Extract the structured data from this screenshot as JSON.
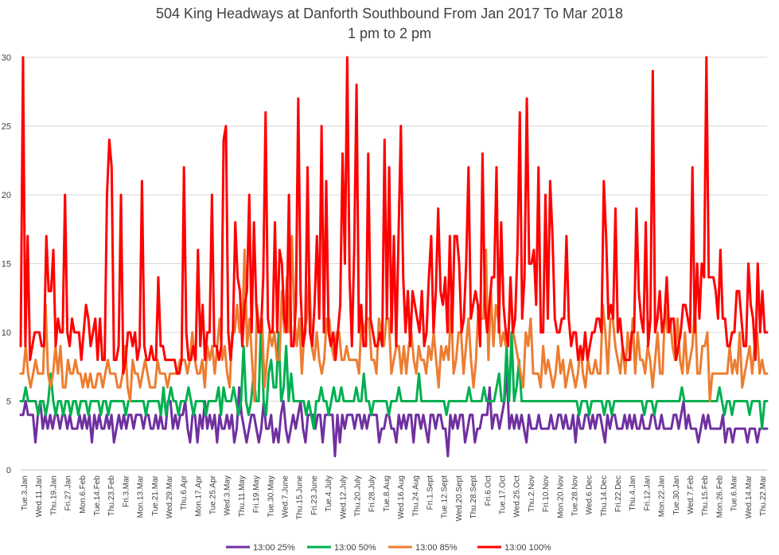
{
  "chart_data": {
    "type": "line",
    "title": "504 King Headways at Danforth Southbound From Jan 2017 To Mar 2018",
    "subtitle": "1 pm to 2 pm",
    "xlabel": "",
    "ylabel": "",
    "ylim": [
      0,
      30
    ],
    "yticks": [
      0,
      5,
      10,
      15,
      20,
      25,
      30
    ],
    "grid": true,
    "legend_position": "bottom",
    "x_tick_labels": [
      "Tue.3.Jan",
      "Wed.11.Jan",
      "Thu.19.Jan",
      "Fri.27.Jan",
      "Mon.6.Feb",
      "Tue.14.Feb",
      "Thu.23.Feb",
      "Fri.3.Mar",
      "Mon.13.Mar",
      "Tue.21.Mar",
      "Wed.29.Mar",
      "Thu.6.Apr",
      "Mon.17.Apr",
      "Tue.25.Apr",
      "Wed.3.May",
      "Thu.11.May",
      "Fri.19.May",
      "Tue.30.May",
      "Wed.7.June",
      "Thu.15.June",
      "Fri.23.June",
      "Tue.4.July",
      "Wed.12.July",
      "Thu.20.July",
      "Fri.28.July",
      "Tue.8.Aug",
      "Wed.16.Aug",
      "Thu.24.Aug",
      "Fri.1.Sept",
      "Tue.12.Sept",
      "Wed.20.Sept",
      "Thu.28.Sept",
      "Fri.6.Oct",
      "Tue.17.Oct",
      "Wed.25.Oct",
      "Thu.2.Nov",
      "Fri.10.Nov",
      "Mon.20.Nov",
      "Tue.28.Nov",
      "Wed.6.Dec",
      "Thu.14.Dec",
      "Fri.22.Dec",
      "Thu.4.Jan",
      "Fri.12.Jan",
      "Mon.22.Jan",
      "Tue.30.Jan",
      "Wed.7.Feb",
      "Thu.15.Feb",
      "Mon.26.Feb",
      "Tue.6.Mar",
      "Wed.14.Mar",
      "Thu.22.Mar"
    ],
    "series": [
      {
        "name": "13:00 25%",
        "color": "#7030a0",
        "values": [
          4,
          4,
          5,
          4,
          4,
          4,
          2,
          4,
          5,
          3,
          4,
          3,
          4,
          3,
          4,
          4,
          3,
          4,
          4,
          3,
          4,
          3,
          3,
          3,
          4,
          3,
          4,
          3,
          4,
          2,
          4,
          3,
          4,
          3,
          3,
          4,
          3,
          4,
          2,
          3,
          4,
          3,
          4,
          3,
          4,
          4,
          3,
          4,
          4,
          4,
          3,
          4,
          4,
          3,
          3,
          4,
          3,
          4,
          3,
          3,
          5,
          5,
          3,
          4,
          3,
          4,
          4,
          5,
          3,
          2,
          4,
          4,
          2,
          4,
          3,
          5,
          3,
          4,
          3,
          4,
          2,
          4,
          3,
          3,
          4,
          3,
          4,
          2,
          3,
          6,
          4,
          3,
          2,
          3,
          4,
          4,
          3,
          2,
          3,
          5,
          3,
          3,
          4,
          2,
          3,
          2,
          4,
          5,
          3,
          2,
          3,
          4,
          3,
          4,
          5,
          3,
          2,
          4,
          4,
          4,
          3,
          4,
          4,
          2,
          4,
          4,
          4,
          4,
          1,
          4,
          2,
          4,
          3,
          4,
          4,
          4,
          3,
          4,
          4,
          3,
          4,
          3,
          4,
          4,
          4,
          4,
          2,
          3,
          3,
          4,
          4,
          3,
          3,
          2,
          4,
          3,
          4,
          3,
          4,
          4,
          2,
          4,
          4,
          3,
          4,
          3,
          2,
          4,
          4,
          3,
          4,
          4,
          3,
          3,
          1,
          4,
          3,
          4,
          3,
          4,
          4,
          2,
          3,
          4,
          4,
          2,
          3,
          3,
          4,
          4,
          4,
          6,
          3,
          4,
          4,
          3,
          4,
          5,
          7,
          3,
          4,
          3,
          4,
          3,
          4,
          3,
          2,
          4,
          3,
          3,
          3,
          4,
          3,
          3,
          3,
          3,
          4,
          3,
          3,
          4,
          4,
          3,
          4,
          3,
          3,
          4,
          2,
          4,
          3,
          3,
          4,
          4,
          3,
          4,
          3,
          4,
          4,
          3,
          2,
          4,
          3,
          4,
          4,
          3,
          3,
          3,
          4,
          3,
          4,
          3,
          4,
          3,
          3,
          4,
          3,
          3,
          3,
          4,
          4,
          3,
          3,
          4,
          3,
          3,
          3,
          3,
          4,
          4,
          3,
          4,
          5,
          3,
          4,
          3,
          3,
          3,
          2,
          3,
          4,
          3,
          4,
          3,
          3,
          3,
          3,
          3,
          4,
          2,
          3,
          3,
          2,
          3,
          3,
          3,
          3,
          3,
          2,
          3,
          3,
          3,
          2,
          3,
          3,
          3,
          3
        ]
      },
      {
        "name": "13:00 50%",
        "color": "#00b050",
        "values": [
          5,
          5,
          6,
          5,
          5,
          5,
          5,
          4,
          5,
          5,
          4,
          5,
          7,
          5,
          4,
          5,
          5,
          4,
          5,
          5,
          4,
          5,
          5,
          4,
          5,
          5,
          5,
          4,
          5,
          5,
          5,
          5,
          4,
          5,
          5,
          4,
          5,
          5,
          5,
          5,
          5,
          5,
          4,
          5,
          5,
          5,
          5,
          5,
          5,
          5,
          4,
          5,
          5,
          5,
          5,
          5,
          4,
          6,
          4,
          5,
          6,
          5,
          5,
          4,
          5,
          5,
          5,
          6,
          5,
          4,
          5,
          5,
          5,
          5,
          4,
          5,
          5,
          5,
          5,
          6,
          4,
          6,
          5,
          5,
          5,
          6,
          5,
          4,
          5,
          9,
          5,
          4,
          5,
          7,
          5,
          5,
          11,
          5,
          4,
          7,
          8,
          6,
          6,
          10,
          5,
          6,
          9,
          5,
          7,
          5,
          5,
          5,
          5,
          5,
          4,
          5,
          4,
          3,
          5,
          5,
          6,
          5,
          5,
          4,
          5,
          6,
          5,
          5,
          6,
          5,
          5,
          5,
          5,
          5,
          6,
          5,
          5,
          7,
          5,
          5,
          4,
          5,
          5,
          5,
          5,
          5,
          5,
          4,
          5,
          5,
          5,
          6,
          5,
          5,
          5,
          5,
          5,
          5,
          5,
          7,
          5,
          5,
          5,
          5,
          5,
          5,
          5,
          5,
          5,
          5,
          4,
          5,
          5,
          5,
          5,
          5,
          5,
          5,
          5,
          6,
          5,
          5,
          5,
          5,
          5,
          6,
          5,
          5,
          5,
          5,
          6,
          7,
          5,
          5,
          9,
          5,
          10,
          5,
          6,
          8,
          5,
          5,
          5,
          5,
          5,
          5,
          5,
          5,
          5,
          5,
          5,
          5,
          5,
          5,
          5,
          5,
          5,
          5,
          5,
          5,
          5,
          5,
          5,
          4,
          5,
          5,
          5,
          4,
          5,
          5,
          5,
          5,
          5,
          4,
          5,
          5,
          4,
          5,
          5,
          5,
          5,
          5,
          5,
          5,
          5,
          5,
          5,
          5,
          5,
          4,
          5,
          5,
          5,
          4,
          5,
          5,
          5,
          5,
          5,
          5,
          5,
          5,
          5,
          5,
          6,
          5,
          5,
          5,
          5,
          5,
          5,
          5,
          5,
          5,
          5,
          5,
          5,
          5,
          5,
          6,
          5,
          4,
          5,
          5,
          4,
          5,
          5,
          5,
          5,
          5,
          5,
          4,
          5,
          5,
          5,
          5,
          3,
          5,
          5
        ]
      },
      {
        "name": "13:00 85%",
        "color": "#ed7d31",
        "values": [
          7,
          7,
          9,
          7,
          6,
          7,
          8,
          7,
          7,
          7,
          12,
          7,
          6,
          7,
          9,
          7,
          9,
          6,
          6,
          8,
          7,
          7,
          8,
          7,
          7,
          6,
          7,
          6,
          7,
          6,
          6,
          7,
          7,
          6,
          7,
          8,
          7,
          7,
          7,
          6,
          6,
          7,
          9,
          6,
          5,
          8,
          7,
          7,
          6,
          7,
          8,
          7,
          6,
          6,
          6,
          8,
          7,
          7,
          7,
          6,
          7,
          7,
          7,
          7,
          8,
          8,
          8,
          7,
          8,
          10,
          8,
          7,
          7,
          8,
          6,
          9,
          8,
          9,
          7,
          9,
          11,
          8,
          9,
          7,
          6,
          10,
          10,
          12,
          10,
          10,
          16,
          9,
          11,
          8,
          5,
          12,
          10,
          11,
          6,
          8,
          10,
          9,
          10,
          8,
          8,
          13,
          10,
          14,
          10,
          17,
          11,
          9,
          11,
          7,
          10,
          11,
          14,
          9,
          8,
          10,
          8,
          7,
          8,
          11,
          11,
          9,
          8,
          10,
          10,
          8,
          8,
          9,
          8,
          8,
          8,
          8,
          7,
          11,
          10,
          11,
          11,
          8,
          8,
          7,
          11,
          10,
          9,
          11,
          11,
          7,
          8,
          9,
          9,
          7,
          9,
          7,
          9,
          10,
          8,
          7,
          9,
          8,
          8,
          7,
          9,
          8,
          10,
          8,
          6,
          9,
          8,
          9,
          8,
          12,
          7,
          8,
          10,
          10,
          7,
          9,
          11,
          8,
          6,
          8,
          12,
          11,
          11,
          16,
          8,
          13,
          9,
          12,
          11,
          9,
          10,
          9,
          10,
          13,
          10,
          9,
          8,
          7,
          6,
          10,
          9,
          11,
          7,
          7,
          7,
          6,
          9,
          7,
          8,
          7,
          6,
          7,
          9,
          7,
          8,
          6,
          7,
          8,
          7,
          6,
          7,
          9,
          7,
          6,
          8,
          7,
          7,
          8,
          7,
          7,
          12,
          10,
          7,
          11,
          11,
          9,
          8,
          7,
          9,
          7,
          10,
          8,
          11,
          7,
          10,
          8,
          8,
          7,
          9,
          8,
          6,
          8,
          10,
          7,
          7,
          12,
          10,
          11,
          9,
          8,
          11,
          8,
          7,
          10,
          7,
          8,
          9,
          12,
          7,
          7,
          9,
          9,
          10,
          5,
          7,
          7,
          7,
          7,
          7,
          7,
          7,
          9,
          7,
          8,
          7,
          10,
          6,
          7,
          8,
          9,
          7,
          9,
          10,
          7,
          8,
          7,
          7
        ]
      },
      {
        "name": "13:00 100%",
        "color": "#ff0000",
        "values": [
          9,
          30,
          9,
          17,
          8,
          9,
          10,
          10,
          10,
          9,
          9,
          17,
          13,
          13,
          16,
          9,
          11,
          10,
          10,
          20,
          10,
          9,
          11,
          10,
          10,
          10,
          8,
          10,
          12,
          11,
          9,
          10,
          11,
          8,
          11,
          8,
          8,
          20,
          24,
          22,
          8,
          8,
          9,
          20,
          7,
          8,
          10,
          10,
          9,
          10,
          8,
          9,
          21,
          9,
          8,
          8,
          9,
          8,
          8,
          14,
          9,
          9,
          8,
          8,
          8,
          8,
          8,
          7,
          7,
          8,
          22,
          10,
          8,
          8,
          9,
          8,
          16,
          9,
          12,
          8,
          10,
          10,
          20,
          9,
          9,
          8,
          9,
          24,
          25,
          10,
          8,
          10,
          18,
          14,
          13,
          9,
          12,
          13,
          20,
          10,
          18,
          12,
          10,
          10,
          14,
          26,
          11,
          10,
          10,
          18,
          10,
          16,
          15,
          11,
          10,
          20,
          9,
          9,
          12,
          27,
          13,
          9,
          10,
          22,
          10,
          9,
          12,
          17,
          11,
          25,
          10,
          21,
          10,
          9,
          10,
          8,
          10,
          12,
          23,
          15,
          30,
          14,
          9,
          16,
          28,
          10,
          12,
          9,
          9,
          23,
          11,
          10,
          9,
          9,
          10,
          9,
          24,
          11,
          22,
          10,
          17,
          9,
          17,
          25,
          14,
          10,
          13,
          9,
          13,
          12,
          11,
          10,
          13,
          9,
          10,
          14,
          17,
          10,
          13,
          19,
          13,
          12,
          14,
          10,
          17,
          10,
          17,
          17,
          15,
          10,
          11,
          15,
          22,
          11,
          12,
          13,
          12,
          9,
          23,
          12,
          10,
          12,
          14,
          14,
          22,
          10,
          18,
          12,
          10,
          9,
          14,
          10,
          11,
          16,
          26,
          11,
          14,
          27,
          15,
          15,
          16,
          12,
          22,
          10,
          10,
          20,
          11,
          21,
          17,
          11,
          10,
          10,
          11,
          11,
          17,
          11,
          9,
          10,
          10,
          8,
          9,
          8,
          10,
          8,
          9,
          10,
          10,
          11,
          11,
          10,
          21,
          17,
          11,
          12,
          11,
          19,
          10,
          11,
          9,
          8,
          8,
          8,
          10,
          10,
          19,
          13,
          11,
          10,
          18,
          9,
          11,
          29,
          10,
          11,
          13,
          10,
          11,
          14,
          10,
          11,
          11,
          8,
          9,
          10,
          12,
          12,
          11,
          10,
          22,
          10,
          15,
          11,
          15,
          14,
          30,
          14,
          14,
          14,
          13,
          11,
          16,
          11,
          11,
          9,
          9,
          10,
          10,
          13,
          13,
          11,
          9,
          9,
          15,
          12,
          11,
          8,
          15,
          10,
          13,
          10,
          10
        ]
      }
    ]
  }
}
